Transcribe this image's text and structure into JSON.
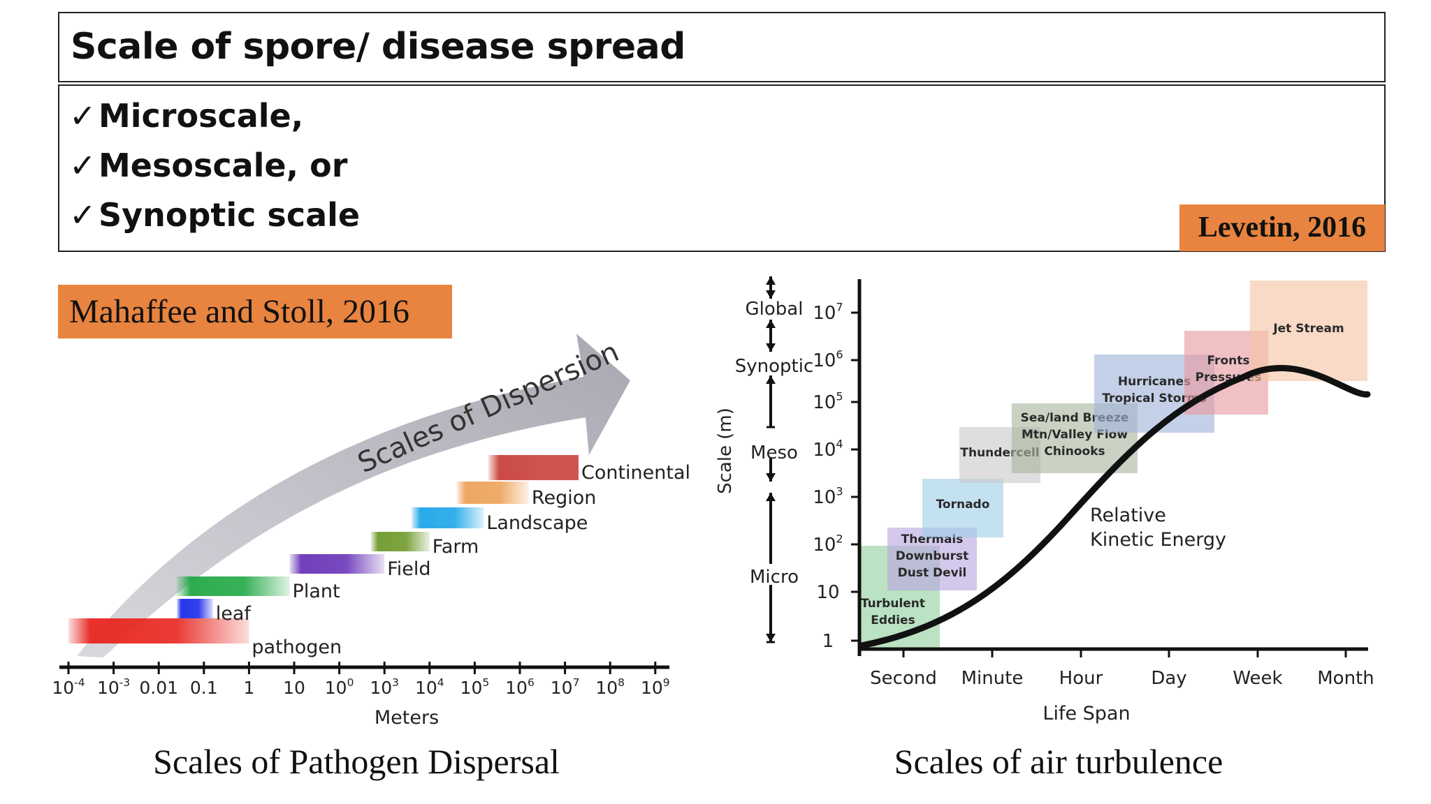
{
  "title": "Scale of spore/ disease spread",
  "bullets": [
    {
      "check": "✓",
      "text": "Microscale,"
    },
    {
      "check": "✓",
      "text": "Mesoscale, or"
    },
    {
      "check": "✓",
      "text": "Synoptic scale"
    }
  ],
  "citations": {
    "right": "Levetin, 2016",
    "left": "Mahaffee and Stoll, 2016"
  },
  "captions": {
    "left": "Scales of Pathogen Dispersal",
    "right": "Scales of air turbulence"
  },
  "dispersal_figure": {
    "arrow_label": "Scales of Dispersion",
    "axis_title": "Meters",
    "ticks": [
      "10-4",
      "10-3",
      "0.01",
      "0.1",
      "1",
      "10",
      "100",
      "103",
      "104",
      "105",
      "106",
      "107",
      "108",
      "109"
    ],
    "bars": [
      {
        "label": "pathogen",
        "from_exp": -4,
        "to_exp": 0,
        "color": "#e8251f"
      },
      {
        "label": "leaf",
        "from_exp": -1.6,
        "to_exp": -0.8,
        "color": "#1b2ce8"
      },
      {
        "label": "Plant",
        "from_exp": -1.6,
        "to_exp": 0.9,
        "color": "#23a846"
      },
      {
        "label": "Field",
        "from_exp": 0.9,
        "to_exp": 3.0,
        "color": "#6a35b8"
      },
      {
        "label": "Farm",
        "from_exp": 2.7,
        "to_exp": 4.0,
        "color": "#6f9a2c"
      },
      {
        "label": "Landscape",
        "from_exp": 3.6,
        "to_exp": 5.2,
        "color": "#1fa6e8"
      },
      {
        "label": "Region",
        "from_exp": 4.6,
        "to_exp": 6.2,
        "color": "#eda25a"
      },
      {
        "label": "Continental",
        "from_exp": 5.3,
        "to_exp": 7.3,
        "color": "#c8413c"
      }
    ]
  },
  "turbulence_figure": {
    "y_axis_title": "Scale (m)",
    "x_axis_title": "Life Span",
    "y_ticks": [
      "1",
      "10",
      "102",
      "103",
      "104",
      "105",
      "106",
      "107"
    ],
    "x_ticks": [
      "Second",
      "Minute",
      "Hour",
      "Day",
      "Week",
      "Month"
    ],
    "scale_labels": [
      "Global",
      "Synoptic",
      "Meso",
      "Micro"
    ],
    "curve_label_1": "Relative",
    "curve_label_2": "Kinetic Energy",
    "phenomena": [
      {
        "lines": [
          "Turbulent",
          "Eddies"
        ],
        "color": "#8fd19e"
      },
      {
        "lines": [
          "Thermals",
          "Downburst",
          "Dust Devil"
        ],
        "color": "#b9a6e0"
      },
      {
        "lines": [
          "Tornado"
        ],
        "color": "#9fcfe8"
      },
      {
        "lines": [
          "Thundercell"
        ],
        "color": "#c9c9c9"
      },
      {
        "lines": [
          "Sea/land Breeze",
          "Mtn/Valley Flow",
          "Chinooks"
        ],
        "color": "#a9b79f"
      },
      {
        "lines": [
          "Hurricanes",
          "Tropical Storms"
        ],
        "color": "#9fb3d9"
      },
      {
        "lines": [
          "Fronts",
          "Pressures"
        ],
        "color": "#e99aa0"
      },
      {
        "lines": [
          "Jet Stream"
        ],
        "color": "#f3c4a3"
      }
    ]
  }
}
